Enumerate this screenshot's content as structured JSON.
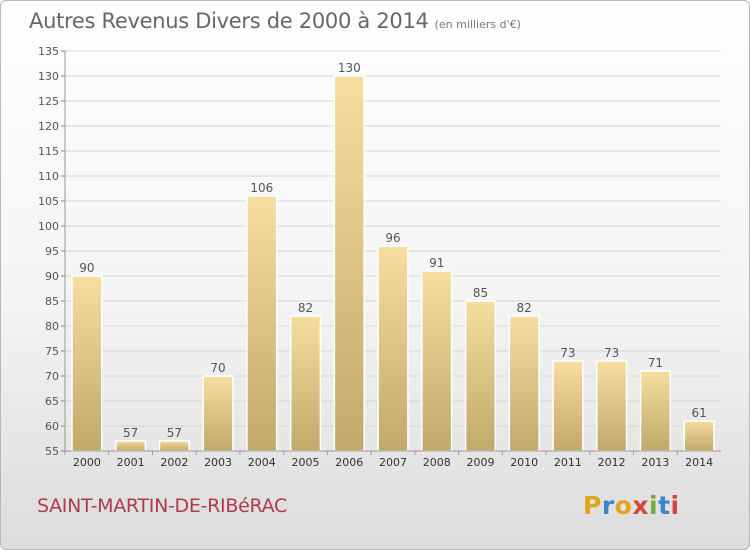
{
  "header": {
    "title": "Autres Revenus Divers de 2000 à 2014",
    "unit": "(en milliers d'€)"
  },
  "commune": "SAINT-MARTIN-DE-RIBéRAC",
  "logo": {
    "letters": [
      "P",
      "r",
      "o",
      "x",
      "i",
      "t",
      "i"
    ]
  },
  "colors": {
    "bar_light": "#f5dc9a",
    "bar_dark": "#c2aa6a",
    "grid": "#d6d6d6"
  },
  "chart_data": {
    "type": "bar",
    "categories": [
      "2000",
      "2001",
      "2002",
      "2003",
      "2004",
      "2005",
      "2006",
      "2007",
      "2008",
      "2009",
      "2010",
      "2011",
      "2012",
      "2013",
      "2014"
    ],
    "values": [
      90,
      57,
      57,
      70,
      106,
      82,
      130,
      96,
      91,
      85,
      82,
      73,
      73,
      71,
      61
    ],
    "title": "Autres Revenus Divers de 2000 à 2014",
    "ylim": [
      55,
      135
    ],
    "yticks": [
      55,
      60,
      65,
      70,
      75,
      80,
      85,
      90,
      95,
      100,
      105,
      110,
      115,
      120,
      125,
      130,
      135
    ],
    "grid": true
  }
}
